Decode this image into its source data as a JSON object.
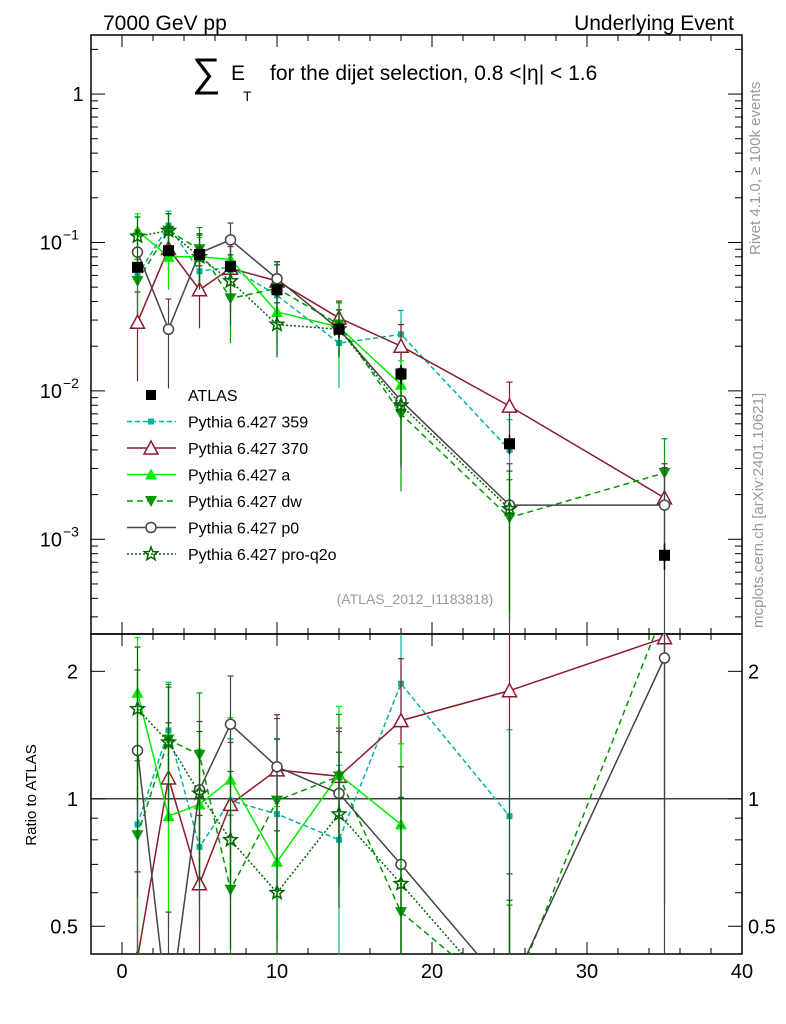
{
  "header": {
    "left": "7000 GeV pp",
    "right": "Underlying Event"
  },
  "title": {
    "sum_symbol": "∑",
    "e_letter": "E",
    "t_subscript": "T",
    "text": "for the dijet selection, 0.8 <|η| < 1.6"
  },
  "side_labels": {
    "rivet": "Rivet 4.1.0, ≥ 100k events",
    "mcplots": "mcplots.cern.ch [arXiv:2401.10621]"
  },
  "analysis_id": "(ATLAS_2012_I1183818)",
  "colors": {
    "atlas": "#000000",
    "p359": "#00b3a0",
    "p370": "#8b1a2e",
    "a": "#00ee00",
    "dw": "#009900",
    "p0": "#444444",
    "proq2o": "#006600"
  },
  "chart_data": {
    "type": "line",
    "xlim": [
      -2,
      40
    ],
    "x_ticks": [
      0,
      10,
      20,
      30,
      40
    ],
    "x_tick_labels": [
      "0",
      "10",
      "20",
      "30",
      "40"
    ],
    "main_panel": {
      "yscale": "log",
      "ylim": [
        0.00023,
        2.5
      ],
      "y_ticks": [
        0.001,
        0.01,
        0.1,
        1
      ],
      "y_tick_labels": [
        {
          "base": "10",
          "exp": "−3"
        },
        {
          "base": "10",
          "exp": "−2"
        },
        {
          "base": "10",
          "exp": "−1"
        },
        {
          "base": "1",
          "exp": ""
        }
      ]
    },
    "ratio_panel": {
      "ylabel": "Ratio to ATLAS",
      "yscale": "log",
      "ylim": [
        0.43,
        2.45
      ],
      "y_ticks": [
        0.5,
        1,
        2
      ],
      "y_tick_labels": [
        "0.5",
        "1",
        "2"
      ],
      "reference_line": 1
    },
    "data": {
      "name": "ATLAS",
      "x": [
        1,
        3,
        5,
        7,
        10,
        14,
        18,
        25,
        35
      ],
      "y": [
        0.068,
        0.088,
        0.083,
        0.069,
        0.048,
        0.026,
        0.013,
        0.0044,
        0.00078
      ],
      "yerr_frac": [
        0.08,
        0.08,
        0.08,
        0.08,
        0.1,
        0.12,
        0.15,
        0.15,
        0.2
      ]
    },
    "series": [
      {
        "key": "p359",
        "name": "Pythia 6.427 359",
        "marker": "square-small",
        "dash": "5,3",
        "x": [
          1,
          3,
          5,
          7,
          10,
          14,
          18,
          25
        ],
        "y": [
          0.06,
          0.13,
          0.064,
          0.068,
          0.044,
          0.021,
          0.024,
          0.004
        ],
        "ratio": [
          0.87,
          1.45,
          0.77,
          0.99,
          0.92,
          0.8,
          1.87,
          0.91
        ],
        "yerr_frac": [
          0.5,
          0.25,
          0.3,
          0.5,
          0.6,
          0.5,
          0.45,
          0.6
        ],
        "ratio_err": [
          0.5,
          0.3,
          0.35,
          0.4,
          0.5,
          0.5,
          0.35,
          0.6
        ]
      },
      {
        "key": "p370",
        "name": "Pythia 6.427 370",
        "marker": "triangle-open",
        "dash": "",
        "x": [
          1,
          3,
          5,
          7,
          10,
          14,
          18,
          25,
          35
        ],
        "y": [
          0.029,
          0.091,
          0.048,
          0.067,
          0.055,
          0.031,
          0.02,
          0.0079,
          0.0019
        ],
        "ratio": [
          0.42,
          1.12,
          0.63,
          0.97,
          1.17,
          1.13,
          1.53,
          1.8,
          2.4
        ],
        "yerr_frac": [
          0.6,
          0.3,
          0.45,
          0.4,
          0.35,
          0.3,
          0.4,
          0.45,
          0.6
        ],
        "ratio_err": [
          0.6,
          0.35,
          0.45,
          0.4,
          0.35,
          0.3,
          0.4,
          1.0,
          0.6
        ]
      },
      {
        "key": "a",
        "name": "Pythia 6.427 a",
        "marker": "triangle-filled",
        "dash": "",
        "x": [
          1,
          3,
          5,
          7,
          10,
          14,
          18
        ],
        "y": [
          0.12,
          0.08,
          0.08,
          0.077,
          0.034,
          0.027,
          0.011
        ],
        "ratio": [
          1.78,
          0.91,
          0.97,
          1.11,
          0.71,
          1.14,
          0.87
        ],
        "yerr_frac": [
          0.3,
          0.4,
          0.35,
          0.35,
          0.4,
          0.45,
          0.45
        ],
        "ratio_err": [
          0.35,
          0.45,
          0.35,
          0.4,
          0.35,
          0.45,
          0.55
        ]
      },
      {
        "key": "dw",
        "name": "Pythia 6.427 dw",
        "marker": "triangle-down-filled",
        "dash": "6,4",
        "x": [
          1,
          3,
          5,
          7,
          10,
          14,
          18,
          25,
          35
        ],
        "y": [
          0.055,
          0.12,
          0.09,
          0.042,
          0.049,
          0.028,
          0.007,
          0.0014,
          0.0028
        ],
        "ratio": [
          0.82,
          1.38,
          1.27,
          0.61,
          0.99,
          1.13,
          0.54,
          0.33,
          2.8
        ],
        "yerr_frac": [
          0.4,
          0.3,
          0.4,
          0.5,
          0.45,
          0.4,
          0.7,
          0.8,
          0.7
        ],
        "ratio_err": [
          0.5,
          0.35,
          0.4,
          0.5,
          0.4,
          0.4,
          0.6,
          0.7,
          0.8
        ]
      },
      {
        "key": "p0",
        "name": "Pythia 6.427 p0",
        "marker": "circle-open",
        "dash": "",
        "x": [
          1,
          3,
          5,
          7,
          10,
          14,
          18,
          25,
          35
        ],
        "y": [
          0.086,
          0.026,
          0.085,
          0.104,
          0.057,
          0.026,
          0.0086,
          0.0017,
          0.0017
        ],
        "ratio": [
          1.3,
          0.3,
          1.05,
          1.5,
          1.19,
          1.03,
          0.7,
          0.35,
          2.15
        ],
        "yerr_frac": [
          0.4,
          0.6,
          0.35,
          0.3,
          0.3,
          0.35,
          0.65,
          0.9,
          0.9
        ],
        "ratio_err": [
          0.55,
          0.8,
          0.45,
          0.3,
          0.3,
          0.4,
          0.7,
          0.9,
          0.9
        ]
      },
      {
        "key": "proq2o",
        "name": "Pythia 6.427 pro-q2o",
        "marker": "star",
        "dash": "2,2",
        "x": [
          1,
          3,
          5,
          7,
          10,
          14,
          18,
          25
        ],
        "y": [
          0.11,
          0.12,
          0.08,
          0.055,
          0.028,
          0.026,
          0.008,
          0.0016
        ],
        "ratio": [
          1.63,
          1.36,
          1.03,
          0.8,
          0.6,
          0.92,
          0.63,
          0.32
        ],
        "yerr_frac": [
          0.35,
          0.3,
          0.4,
          0.5,
          0.4,
          0.35,
          0.6,
          0.8
        ],
        "ratio_err": [
          0.4,
          0.35,
          0.4,
          0.45,
          0.4,
          0.4,
          0.6,
          0.8
        ]
      }
    ]
  }
}
